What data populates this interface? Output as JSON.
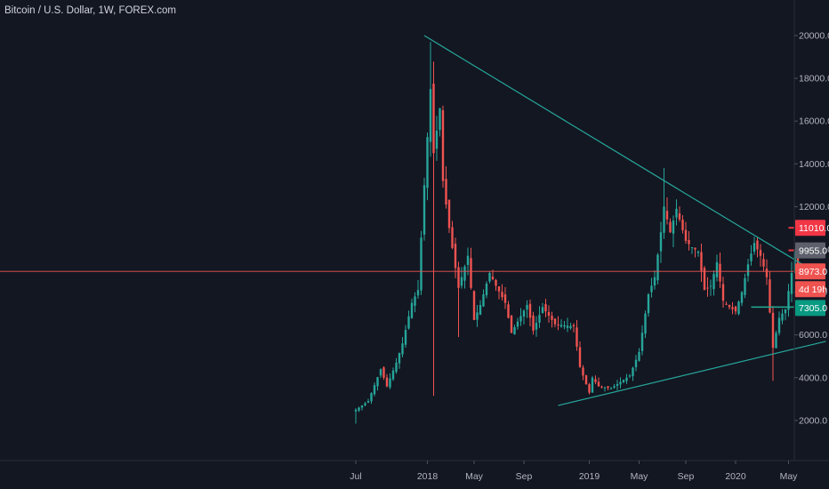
{
  "header": {
    "title": "Bitcoin / U.S. Dollar, 1W, FOREX.com"
  },
  "colors": {
    "background": "#131722",
    "up": "#26a69a",
    "down": "#ef5350",
    "trendline": "#26a69a",
    "last_price_line": "#ef5350",
    "stop": "#f23645",
    "target": "#089981",
    "current_tag": "#5d606b"
  },
  "chart_data": {
    "type": "candlestick",
    "title": "Bitcoin / U.S. Dollar, 1W, FOREX.com",
    "timeframe": "1W",
    "x_ticks": [
      "Jul",
      "2018",
      "May",
      "Sep",
      "2019",
      "May",
      "Sep",
      "2020",
      "May"
    ],
    "y_ticks": [
      2000.0,
      4000.0,
      6000.0,
      8000.0,
      10000.0,
      12000.0,
      14000.0,
      16000.0,
      18000.0,
      20000.0
    ],
    "ylim": [
      -500,
      21300
    ],
    "anchor_points": [
      {
        "week": 0,
        "close": 2500,
        "low": 1850
      },
      {
        "week": 4,
        "close": 2900
      },
      {
        "week": 8,
        "close": 4400
      },
      {
        "week": 10,
        "close": 3600
      },
      {
        "week": 13,
        "close": 4700
      },
      {
        "week": 15,
        "close": 5600
      },
      {
        "week": 18,
        "close": 7500
      },
      {
        "week": 20,
        "close": 8100
      },
      {
        "week": 22,
        "close": 13000
      },
      {
        "week": 24,
        "close": 17500,
        "high": 19700
      },
      {
        "week": 25,
        "close": 14500,
        "low": 3150
      },
      {
        "week": 27,
        "close": 16600
      },
      {
        "week": 28,
        "close": 13200
      },
      {
        "week": 30,
        "close": 11000
      },
      {
        "week": 33,
        "close": 8200,
        "low": 5900
      },
      {
        "week": 36,
        "close": 9700
      },
      {
        "week": 38,
        "close": 6700
      },
      {
        "week": 40,
        "close": 7400
      },
      {
        "week": 43,
        "close": 8900
      },
      {
        "week": 45,
        "close": 8300
      },
      {
        "week": 48,
        "close": 7500
      },
      {
        "week": 50,
        "close": 6100
      },
      {
        "week": 55,
        "close": 7400
      },
      {
        "week": 57,
        "close": 6200
      },
      {
        "week": 60,
        "close": 7300
      },
      {
        "week": 64,
        "close": 6500
      },
      {
        "week": 70,
        "close": 6400
      },
      {
        "week": 72,
        "close": 4500
      },
      {
        "week": 75,
        "close": 3300
      },
      {
        "week": 76,
        "close": 4000
      },
      {
        "week": 78,
        "close": 3600
      },
      {
        "week": 82,
        "close": 3500
      },
      {
        "week": 86,
        "close": 3900
      },
      {
        "week": 88,
        "close": 4100
      },
      {
        "week": 91,
        "close": 5200
      },
      {
        "week": 94,
        "close": 7900
      },
      {
        "week": 96,
        "close": 8700
      },
      {
        "week": 98,
        "close": 10800
      },
      {
        "week": 99,
        "close": 12000,
        "high": 13800
      },
      {
        "week": 101,
        "close": 10800
      },
      {
        "week": 103,
        "close": 11900
      },
      {
        "week": 106,
        "close": 10400
      },
      {
        "week": 108,
        "close": 10100
      },
      {
        "week": 110,
        "close": 9900
      },
      {
        "week": 112,
        "close": 8100
      },
      {
        "week": 114,
        "close": 8300
      },
      {
        "week": 116,
        "close": 9400
      },
      {
        "week": 118,
        "close": 7600
      },
      {
        "week": 120,
        "close": 7300
      },
      {
        "week": 122,
        "close": 7100
      },
      {
        "week": 124,
        "close": 8000
      },
      {
        "week": 126,
        "close": 9300
      },
      {
        "week": 128,
        "close": 10300
      },
      {
        "week": 130,
        "close": 9700
      },
      {
        "week": 132,
        "close": 8700
      },
      {
        "week": 134,
        "close": 5400,
        "low": 3850
      },
      {
        "week": 136,
        "close": 6800
      },
      {
        "week": 138,
        "close": 7200
      },
      {
        "week": 140,
        "close": 8900
      },
      {
        "week": 141,
        "close": 9800
      },
      {
        "week": 142,
        "close": 8973
      }
    ],
    "trendlines": [
      {
        "name": "",
        "from": {
          "week": 22,
          "price": 20000
        },
        "to": {
          "week": 148,
          "price": 8900
        }
      },
      {
        "name": "",
        "from": {
          "week": 65,
          "price": 2700
        },
        "to": {
          "week": 151,
          "price": 5700
        }
      }
    ],
    "position": {
      "entry": 9955.0,
      "stop": 11010.0,
      "target": 7305.0,
      "current": 8973.0,
      "countdown": "4d 19h"
    }
  },
  "price_tags": {
    "stop": "11010.0",
    "entry": "9955.0",
    "current": "8973.0",
    "countdown": "4d 19h",
    "target": "7305.0"
  }
}
